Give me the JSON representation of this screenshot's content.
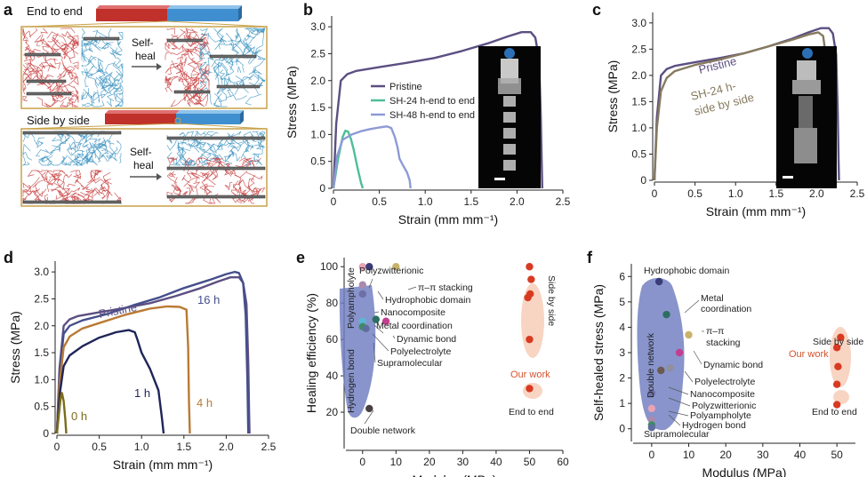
{
  "figure": {
    "panel_labels": [
      "a",
      "b",
      "c",
      "d",
      "e",
      "f"
    ],
    "panel_a": {
      "top_label": "End to end",
      "bottom_label": "Side by side",
      "heal_label_top_1": "Self-",
      "heal_label_top_2": "heal",
      "heal_label_bottom_1": "Self-",
      "heal_label_bottom_2": "heal"
    }
  },
  "colors": {
    "pristine": "#5c4f82",
    "sh24": "#4fbe96",
    "sh48": "#8d9ad6",
    "sh24_side": "#877a5e",
    "h0": "#7b6b1c",
    "h1": "#1f2559",
    "h4": "#b97a34",
    "h16": "#454f8c",
    "blob": "#6e7dc0",
    "ourwork": "#d83a22",
    "ourwork_text": "#d4532c",
    "ourwork_bg": "#f8d5c2",
    "red_polymer": "#c84141",
    "blue_polymer": "#3f95c1"
  },
  "chart_data": [
    {
      "id": "b",
      "type": "line",
      "xlabel": "Strain (mm mm⁻¹)",
      "ylabel": "Stress (MPa)",
      "xlim": [
        0,
        2.5
      ],
      "ylim": [
        0,
        3.2
      ],
      "xticks": [
        "0",
        "0.5",
        "1.0",
        "1.5",
        "2.0",
        "2.5"
      ],
      "yticks": [
        "0",
        "0.5",
        "1.0",
        "1.5",
        "2.0",
        "2.5",
        "3.0"
      ],
      "legend_position": "center",
      "series": [
        {
          "name": "Pristine",
          "color": "#5c4f82",
          "x": [
            0,
            0.03,
            0.08,
            0.15,
            0.25,
            0.5,
            0.8,
            1.1,
            1.4,
            1.7,
            1.9,
            2.05,
            2.15,
            2.2,
            2.24,
            2.26,
            2.27,
            2.275
          ],
          "y": [
            0,
            1.2,
            2.0,
            2.12,
            2.18,
            2.25,
            2.33,
            2.42,
            2.55,
            2.7,
            2.82,
            2.9,
            2.9,
            2.8,
            2.4,
            1.3,
            0.4,
            0
          ]
        },
        {
          "name": "SH-24 h-end to end",
          "color": "#4fbe96",
          "x": [
            0,
            0.05,
            0.1,
            0.13,
            0.16,
            0.19,
            0.22,
            0.26,
            0.3,
            0.32
          ],
          "y": [
            0,
            0.55,
            0.95,
            1.07,
            1.05,
            0.92,
            0.72,
            0.4,
            0.1,
            0
          ]
        },
        {
          "name": "SH-48 h-end to end",
          "color": "#8d9ad6",
          "x": [
            0,
            0.04,
            0.1,
            0.2,
            0.3,
            0.4,
            0.5,
            0.58,
            0.63,
            0.67,
            0.7,
            0.72,
            0.76,
            0.8,
            0.83,
            0.84
          ],
          "y": [
            0,
            0.6,
            0.9,
            1.0,
            1.06,
            1.1,
            1.13,
            1.15,
            1.12,
            0.95,
            0.75,
            0.55,
            0.42,
            0.3,
            0.15,
            0
          ]
        }
      ]
    },
    {
      "id": "c",
      "type": "line",
      "xlabel": "Strain (mm mm⁻¹)",
      "ylabel": "Stress (MPa)",
      "xlim": [
        0,
        2.5
      ],
      "ylim": [
        0,
        3.2
      ],
      "xticks": [
        "0",
        "0.5",
        "1.0",
        "1.5",
        "2.0",
        "2.5"
      ],
      "yticks": [
        "0",
        "0.5",
        "1.0",
        "1.5",
        "2.0",
        "2.5",
        "3.0"
      ],
      "labels": [
        "Pristine",
        "SH-24 h-",
        "side by side"
      ],
      "series": [
        {
          "name": "Pristine",
          "color": "#5c4f82",
          "x": [
            0,
            0.03,
            0.08,
            0.15,
            0.25,
            0.5,
            0.8,
            1.1,
            1.4,
            1.7,
            1.9,
            2.05,
            2.15,
            2.2,
            2.24,
            2.26,
            2.27,
            2.275
          ],
          "y": [
            0,
            1.2,
            2.0,
            2.12,
            2.18,
            2.25,
            2.33,
            2.42,
            2.55,
            2.7,
            2.82,
            2.9,
            2.9,
            2.8,
            2.4,
            1.3,
            0.4,
            0
          ]
        },
        {
          "name": "SH-24 h-side by side",
          "color": "#877a5e",
          "x": [
            0,
            0.03,
            0.08,
            0.15,
            0.25,
            0.5,
            0.8,
            1.1,
            1.4,
            1.7,
            1.9,
            2.02,
            2.08,
            2.12,
            2.15,
            2.17,
            2.18
          ],
          "y": [
            0,
            1.0,
            1.7,
            1.95,
            2.08,
            2.2,
            2.3,
            2.42,
            2.55,
            2.68,
            2.78,
            2.82,
            2.75,
            2.3,
            1.2,
            0.3,
            0
          ]
        }
      ]
    },
    {
      "id": "d",
      "type": "line",
      "xlabel": "Strain (mm mm⁻¹)",
      "ylabel": "Stress (MPa)",
      "xlim": [
        0,
        2.5
      ],
      "ylim": [
        0,
        3.2
      ],
      "xticks": [
        "0",
        "0.5",
        "1.0",
        "1.5",
        "2.0",
        "2.5"
      ],
      "yticks": [
        "0",
        "0.5",
        "1.0",
        "1.5",
        "2.0",
        "2.5",
        "3.0"
      ],
      "labels": [
        "Pristine",
        "16 h",
        "4 h",
        "1 h",
        "0 h"
      ],
      "series": [
        {
          "name": "Pristine",
          "color": "#5c4f82",
          "x": [
            0,
            0.03,
            0.08,
            0.15,
            0.25,
            0.5,
            0.8,
            1.1,
            1.4,
            1.7,
            1.9,
            2.05,
            2.15,
            2.2,
            2.24,
            2.26,
            2.27,
            2.275
          ],
          "y": [
            0,
            1.2,
            2.0,
            2.12,
            2.18,
            2.25,
            2.33,
            2.42,
            2.55,
            2.7,
            2.82,
            2.9,
            2.9,
            2.8,
            2.4,
            1.3,
            0.4,
            0
          ]
        },
        {
          "name": "16 h",
          "color": "#454f8c",
          "x": [
            0,
            0.03,
            0.08,
            0.15,
            0.3,
            0.6,
            0.9,
            1.2,
            1.5,
            1.8,
            2.0,
            2.1,
            2.15,
            2.2,
            2.23,
            2.25,
            2.26
          ],
          "y": [
            0,
            1.1,
            1.85,
            2.0,
            2.1,
            2.22,
            2.38,
            2.52,
            2.7,
            2.85,
            2.96,
            3.0,
            2.98,
            2.8,
            2.2,
            1.0,
            0
          ]
        },
        {
          "name": "4 h",
          "color": "#b97a34",
          "x": [
            0,
            0.03,
            0.08,
            0.15,
            0.3,
            0.5,
            0.8,
            1.1,
            1.3,
            1.45,
            1.53,
            1.55,
            1.56,
            1.57
          ],
          "y": [
            0,
            0.9,
            1.6,
            1.8,
            1.95,
            2.05,
            2.2,
            2.32,
            2.36,
            2.35,
            2.3,
            1.6,
            0.6,
            0
          ]
        },
        {
          "name": "1 h",
          "color": "#1f2559",
          "x": [
            0,
            0.03,
            0.08,
            0.15,
            0.3,
            0.5,
            0.7,
            0.85,
            0.92,
            0.95,
            1.0,
            1.1,
            1.2,
            1.24,
            1.26
          ],
          "y": [
            0,
            0.7,
            1.25,
            1.45,
            1.62,
            1.78,
            1.88,
            1.92,
            1.88,
            1.75,
            1.5,
            1.2,
            0.8,
            0.3,
            0
          ]
        },
        {
          "name": "0 h",
          "color": "#7b6b1c",
          "x": [
            0,
            0.02,
            0.04,
            0.05,
            0.06,
            0.08,
            0.1,
            0.11
          ],
          "y": [
            0,
            0.3,
            0.6,
            0.72,
            0.75,
            0.6,
            0.25,
            0
          ]
        }
      ]
    },
    {
      "id": "e",
      "type": "scatter",
      "xlabel": "Modulus (MPa)",
      "ylabel": "Healing efficiency (%)",
      "xlim": [
        -5,
        60
      ],
      "ylim": [
        0,
        105
      ],
      "xticks": [
        "0",
        "10",
        "20",
        "30",
        "40",
        "50",
        "60"
      ],
      "yticks": [
        "20",
        "40",
        "60",
        "80",
        "100"
      ],
      "xtick_values": [
        0,
        10,
        20,
        30,
        40,
        50,
        60
      ],
      "ytick_values": [
        20,
        40,
        60,
        80,
        100
      ],
      "points": [
        {
          "label": "Polyzwitterionic",
          "x": 0,
          "y": 100,
          "color": "#e8a3b6"
        },
        {
          "label": "π–π stacking",
          "x": 10,
          "y": 100,
          "color": "#c9b26a"
        },
        {
          "label": "Hydrophobic domain",
          "x": 2,
          "y": 100,
          "color": "#3a3c7a"
        },
        {
          "label": "Nanocomposite",
          "x": 0,
          "y": 85,
          "color": "#6d6fa6"
        },
        {
          "label": "Polyampholyte",
          "x": 0,
          "y": 90,
          "color": "#a88ab0"
        },
        {
          "label": "Metal coordination",
          "x": 4,
          "y": 71,
          "color": "#2c6f62"
        },
        {
          "label": "Dynamic bond",
          "x": 7,
          "y": 70,
          "color": "#c23f8f"
        },
        {
          "label": "Polyelectrolyte",
          "x": 0,
          "y": 70,
          "color": "#5cb6d6"
        },
        {
          "label": "Hydrogen bond",
          "x": 0,
          "y": 67,
          "color": "#3c8e61"
        },
        {
          "label": "Supramolecular",
          "x": 1,
          "y": 66,
          "color": "#5f6d9f"
        },
        {
          "label": "Double network",
          "x": 2,
          "y": 22,
          "color": "#4a4040"
        }
      ],
      "our_work": {
        "label": "Our work",
        "side_label": "Side by side",
        "end_label": "End to end",
        "side_by_side": {
          "x": [
            50,
            50.5,
            49.5,
            50.2,
            50
          ],
          "y": [
            100,
            93,
            83,
            85,
            60
          ]
        },
        "end_to_end": {
          "x": [
            50
          ],
          "y": [
            33
          ]
        }
      }
    },
    {
      "id": "f",
      "type": "scatter",
      "xlabel": "Modulus (MPa)",
      "ylabel": "Self-healed stress (MPa)",
      "xlim": [
        -5,
        55
      ],
      "ylim": [
        -0.5,
        6.5
      ],
      "xticks": [
        "0",
        "10",
        "20",
        "30",
        "40",
        "50"
      ],
      "yticks": [
        "0",
        "1",
        "2",
        "3",
        "4",
        "5",
        "6"
      ],
      "xtick_values": [
        0,
        10,
        20,
        30,
        40,
        50
      ],
      "ytick_values": [
        0,
        1,
        2,
        3,
        4,
        5,
        6
      ],
      "points": [
        {
          "label": "Hydrophobic domain",
          "x": 2,
          "y": 5.8,
          "color": "#3a3c7a"
        },
        {
          "label": "Metal coordination",
          "x": 4,
          "y": 4.5,
          "color": "#2c6f62"
        },
        {
          "label": "π–π stacking",
          "x": 10,
          "y": 3.7,
          "color": "#c9b26a"
        },
        {
          "label": "Dynamic bond",
          "x": 7.5,
          "y": 3.0,
          "color": "#c23f8f"
        },
        {
          "label": "Polyelectrolyte",
          "x": 5,
          "y": 2.4,
          "color": "#8f8f9e"
        },
        {
          "label": "Double network",
          "x": 2.5,
          "y": 2.3,
          "color": "#6d5a4f"
        },
        {
          "label": "Nanocomposite",
          "x": 0,
          "y": 1.4,
          "color": "#6d6fa6"
        },
        {
          "label": "Polyzwitterionic",
          "x": 0,
          "y": 0.8,
          "color": "#e8a3b6"
        },
        {
          "label": "Polyampholyte",
          "x": 0,
          "y": 0.35,
          "color": "#a88ab0"
        },
        {
          "label": "Hydrogen bond",
          "x": 0,
          "y": 0.15,
          "color": "#3c8e61"
        },
        {
          "label": "Supramolecular",
          "x": 0,
          "y": 0.05,
          "color": "#5f6d9f"
        }
      ],
      "our_work": {
        "label": "Our work",
        "side_label": "Side by side",
        "end_label": "End to end",
        "side_by_side": {
          "x": [
            51,
            50,
            50.3,
            50
          ],
          "y": [
            3.6,
            3.2,
            2.45,
            1.75
          ]
        },
        "end_to_end": {
          "x": [
            50
          ],
          "y": [
            0.95
          ]
        }
      }
    }
  ]
}
